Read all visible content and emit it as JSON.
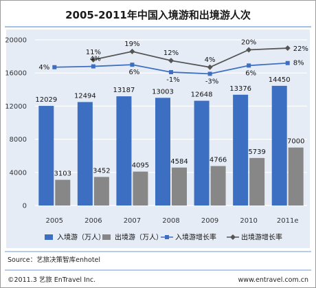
{
  "chart_data": {
    "type": "bar",
    "title": "2005-2011年中国入境游和出境游人次",
    "categories": [
      "2005",
      "2006",
      "2007",
      "2008",
      "2009",
      "2010",
      "2011e"
    ],
    "ylim": [
      0,
      20000
    ],
    "yticks": [
      0,
      4000,
      8000,
      12000,
      16000,
      20000
    ],
    "grid": true,
    "legend_position": "bottom",
    "series": [
      {
        "name": "入境游（万人）",
        "kind": "bar",
        "color": "#3c6fc1",
        "values": [
          12029,
          12494,
          13187,
          13003,
          12648,
          13376,
          14450
        ]
      },
      {
        "name": "出境游（万人）",
        "kind": "bar",
        "color": "#878787",
        "values": [
          3103,
          3452,
          4095,
          4584,
          4766,
          5739,
          7000
        ]
      },
      {
        "name": "入境游增长率",
        "kind": "line",
        "color": "#3c6fc1",
        "values": [
          16700,
          16800,
          17000,
          16100,
          15900,
          16900,
          17200
        ],
        "labels": [
          "4%",
          "4%",
          "6%",
          "-1%",
          "-3%",
          "6%",
          "8%"
        ]
      },
      {
        "name": "出境游增长率",
        "kind": "line",
        "color": "#555555",
        "values": [
          null,
          17600,
          18600,
          17500,
          16700,
          18800,
          19000
        ],
        "labels": [
          "",
          "11%",
          "19%",
          "12%",
          "4%",
          "20%",
          "22%"
        ]
      }
    ]
  },
  "footer": {
    "source": "Source：艺旅决策智库enhotel",
    "copyright": "©2011.3  艺旅  EnTravel Inc.",
    "website": "www.entravel.com.cn"
  }
}
